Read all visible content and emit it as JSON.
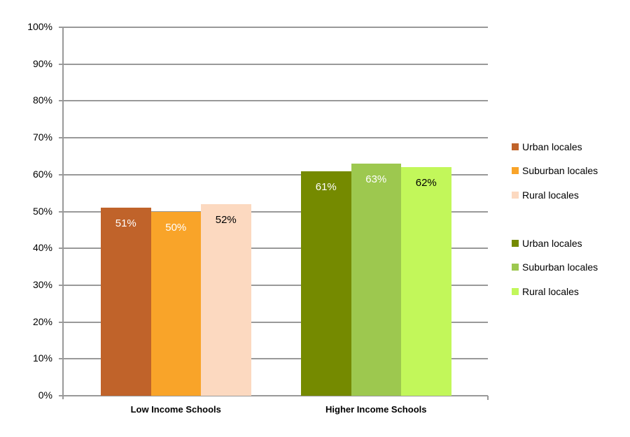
{
  "chart_data": {
    "type": "bar",
    "title": "",
    "xlabel": "",
    "ylabel": "",
    "ylim": [
      0,
      100
    ],
    "yticks": [
      "0%",
      "10%",
      "20%",
      "30%",
      "40%",
      "50%",
      "60%",
      "70%",
      "80%",
      "90%",
      "100%"
    ],
    "grid": true,
    "legend_position": "right",
    "categories": [
      "Low Income Schools",
      "Higher Income Schools"
    ],
    "groups": [
      {
        "category": "Low Income Schools",
        "bars": [
          {
            "name": "Urban locales",
            "value": 51,
            "label": "51%",
            "color": "#C0632A",
            "label_color": "#FFFFFF"
          },
          {
            "name": "Suburban locales",
            "value": 50,
            "label": "50%",
            "color": "#F9A429",
            "label_color": "#FFFFFF"
          },
          {
            "name": "Rural locales",
            "value": 52,
            "label": "52%",
            "color": "#FCD9C0",
            "label_color": "#000000"
          }
        ]
      },
      {
        "category": "Higher Income Schools",
        "bars": [
          {
            "name": "Urban locales",
            "value": 61,
            "label": "61%",
            "color": "#758A00",
            "label_color": "#FFFFFF"
          },
          {
            "name": "Suburban locales",
            "value": 63,
            "label": "63%",
            "color": "#9DC84F",
            "label_color": "#FFFFFF"
          },
          {
            "name": "Rural locales",
            "value": 62,
            "label": "62%",
            "color": "#C2F75A",
            "label_color": "#000000"
          }
        ]
      }
    ],
    "legend": [
      {
        "label": "Urban locales",
        "color": "#C0632A"
      },
      {
        "label": "Suburban locales",
        "color": "#F9A429"
      },
      {
        "label": "Rural locales",
        "color": "#FCD9C0"
      },
      {
        "label": "Urban locales",
        "color": "#758A00"
      },
      {
        "label": "Suburban locales",
        "color": "#9DC84F"
      },
      {
        "label": "Rural locales",
        "color": "#C2F75A"
      }
    ]
  }
}
